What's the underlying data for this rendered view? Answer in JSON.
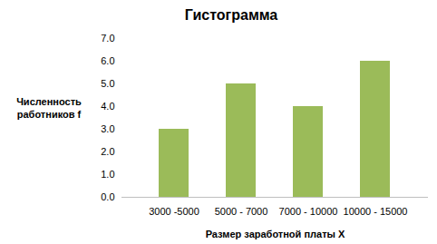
{
  "chart_data": {
    "type": "bar",
    "title": "Гистограмма",
    "xlabel": "Размер заработной платы X",
    "ylabel": "Численность работников f",
    "categories": [
      "3000 -5000",
      "5000 - 7000",
      "7000 - 10000",
      "10000 - 15000"
    ],
    "values": [
      3,
      5,
      4,
      6
    ],
    "color": "#9bbb59",
    "ylim": [
      0,
      7
    ],
    "yticks": [
      0,
      1,
      2,
      3,
      4,
      5,
      6,
      7
    ],
    "grid": false
  }
}
